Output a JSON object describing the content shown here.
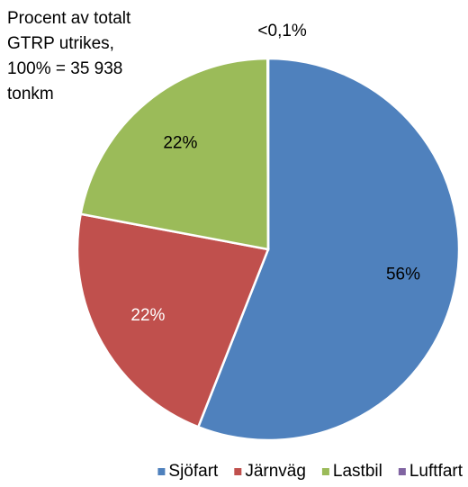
{
  "chart_data": {
    "type": "pie",
    "title": [
      "Procent av totalt",
      "GTRP utrikes,",
      "100% = 35 938",
      "tonkm"
    ],
    "categories": [
      "Sjöfart",
      "Järnväg",
      "Lastbil",
      "Luftfart"
    ],
    "values": [
      56,
      22,
      22,
      0.05
    ],
    "value_labels": [
      "56%",
      "22%",
      "22%",
      "<0,1%"
    ],
    "colors": [
      "#4f81bd",
      "#c0504d",
      "#9bbb59",
      "#8064a2"
    ],
    "label_colors": [
      "#000000",
      "#ffffff",
      "#000000",
      "#000000"
    ],
    "legend": "bottom"
  }
}
